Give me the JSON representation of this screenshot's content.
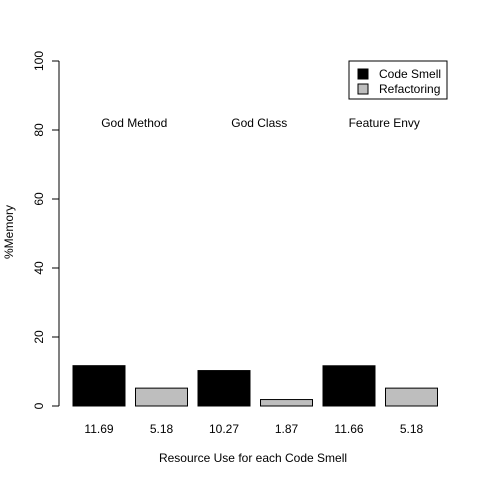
{
  "chart_data": {
    "type": "bar",
    "xlabel": "Resource Use for each Code Smell",
    "ylabel": "%Memory",
    "ylim": [
      0,
      100
    ],
    "yticks": [
      0,
      20,
      40,
      60,
      80,
      100
    ],
    "categories": [
      "God Method",
      "God Class",
      "Feature Envy"
    ],
    "series": [
      {
        "name": "Code Smell",
        "values": [
          11.69,
          10.27,
          11.66
        ],
        "color": "#000000"
      },
      {
        "name": "Refactoring",
        "values": [
          5.18,
          1.87,
          5.18
        ],
        "color": "#bebebe"
      }
    ],
    "bar_labels": [
      "11.69",
      "5.18",
      "10.27",
      "1.87",
      "11.66",
      "5.18"
    ],
    "legend_position": "top-right",
    "grid": false
  }
}
